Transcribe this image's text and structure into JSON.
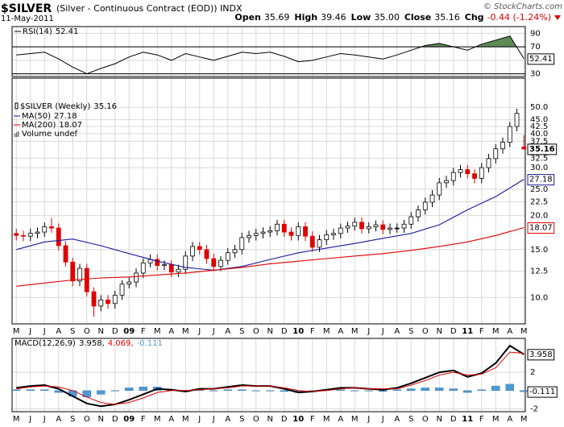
{
  "header": {
    "title": "$SILVER",
    "subtitle": "(Silver - Continuous Contract (EOD)) INDX",
    "date": "11-May-2011",
    "copyright": "© StockCharts.com",
    "quote": [
      {
        "label": "Open",
        "value": "35.69"
      },
      {
        "label": "High",
        "value": "39.46"
      },
      {
        "label": "Low",
        "value": "35.00"
      },
      {
        "label": "Close",
        "value": "35.16"
      }
    ],
    "change": {
      "label": "Chg",
      "value": "-0.44 (-1.24%)",
      "color": "#e00000"
    }
  },
  "chart_data": [
    {
      "type": "line",
      "xlim": [
        -0.3,
        36.1
      ],
      "ylim": [
        26,
        100
      ],
      "yticks": [
        90,
        70,
        50,
        30
      ],
      "overbought": 70,
      "oversold": 30,
      "fill_color": "#5e8a55",
      "series": [
        {
          "name": "RSI(14)",
          "color": "#000000",
          "x": [
            0,
            1,
            2,
            3,
            4,
            5,
            6,
            7,
            8,
            9,
            10,
            11,
            12,
            13,
            14,
            15,
            16,
            17,
            18,
            19,
            20,
            21,
            22,
            23,
            24,
            25,
            26,
            27,
            28,
            29,
            30,
            31,
            32,
            33,
            34,
            35,
            36
          ],
          "values": [
            58,
            60,
            62,
            52,
            40,
            30,
            38,
            45,
            55,
            62,
            58,
            50,
            60,
            55,
            50,
            56,
            62,
            60,
            62,
            56,
            48,
            50,
            55,
            60,
            58,
            55,
            52,
            58,
            65,
            72,
            75,
            70,
            65,
            74,
            80,
            86,
            52.41
          ]
        }
      ]
    },
    {
      "type": "candlestick",
      "name": "$SILVER (Weekly)",
      "up_color": "#000000",
      "down_color": "#e00000",
      "volume_label": "Volume undef",
      "log_scale": true,
      "xlim": [
        -0.3,
        36.1
      ],
      "ylim": [
        8,
        64
      ],
      "yticks": [
        {
          "value": 10,
          "label": "10.0"
        },
        12.5,
        {
          "value": 15,
          "label": "15.0"
        },
        {
          "value": 20,
          "label": "20.0"
        },
        22.5,
        {
          "value": 25,
          "label": "25.0"
        },
        {
          "value": 30,
          "label": "30.0"
        },
        32.5,
        37.5,
        {
          "value": 40,
          "label": "40.0"
        },
        42.5,
        {
          "value": 45,
          "label": "45.0"
        },
        {
          "value": 50,
          "label": "50.0"
        }
      ],
      "xticks": [
        {
          "value": 0,
          "label": "M"
        },
        {
          "value": 1,
          "label": "J"
        },
        {
          "value": 2,
          "label": "J"
        },
        {
          "value": 3,
          "label": "A"
        },
        {
          "value": 4,
          "label": "S"
        },
        {
          "value": 5,
          "label": "O"
        },
        {
          "value": 6,
          "label": "N"
        },
        {
          "value": 7,
          "label": "D"
        },
        {
          "value": 8,
          "label": "09"
        },
        {
          "value": 9,
          "label": "F"
        },
        {
          "value": 10,
          "label": "M"
        },
        {
          "value": 11,
          "label": "A"
        },
        {
          "value": 12,
          "label": "M"
        },
        {
          "value": 13,
          "label": "J"
        },
        {
          "value": 14,
          "label": "J"
        },
        {
          "value": 15,
          "label": "A"
        },
        {
          "value": 16,
          "label": "S"
        },
        {
          "value": 17,
          "label": "O"
        },
        {
          "value": 18,
          "label": "N"
        },
        {
          "value": 19,
          "label": "D"
        },
        {
          "value": 20,
          "label": "10"
        },
        {
          "value": 21,
          "label": "F"
        },
        {
          "value": 22,
          "label": "M"
        },
        {
          "value": 23,
          "label": "A"
        },
        {
          "value": 24,
          "label": "M"
        },
        {
          "value": 25,
          "label": "J"
        },
        {
          "value": 26,
          "label": "J"
        },
        {
          "value": 27,
          "label": "A"
        },
        {
          "value": 28,
          "label": "S"
        },
        {
          "value": 29,
          "label": "O"
        },
        {
          "value": 30,
          "label": "N"
        },
        {
          "value": 31,
          "label": "D"
        },
        {
          "value": 32,
          "label": "11"
        },
        {
          "value": 33,
          "label": "F"
        },
        {
          "value": 34,
          "label": "M"
        },
        {
          "value": 35,
          "label": "A"
        },
        {
          "value": 36,
          "label": "M"
        }
      ],
      "x": [
        0,
        0.5,
        1,
        1.5,
        2,
        2.5,
        3,
        3.5,
        4,
        4.5,
        5,
        5.5,
        6,
        6.5,
        7,
        7.5,
        8,
        8.5,
        9,
        9.5,
        10,
        10.5,
        11,
        11.5,
        12,
        12.5,
        13,
        13.5,
        14,
        14.5,
        15,
        15.5,
        16,
        16.5,
        17,
        17.5,
        18,
        18.5,
        19,
        19.5,
        20,
        20.5,
        21,
        21.5,
        22,
        22.5,
        23,
        23.5,
        24,
        24.5,
        25,
        25.5,
        26,
        26.5,
        27,
        27.5,
        28,
        28.5,
        29,
        29.5,
        30,
        30.5,
        31,
        31.5,
        32,
        32.5,
        33,
        33.5,
        34,
        34.5,
        35,
        35.5,
        36
      ],
      "open": [
        17.2,
        16.9,
        16.8,
        17.2,
        17.4,
        18.2,
        18.0,
        15.5,
        13.5,
        11.5,
        12.8,
        10.5,
        9.3,
        9.8,
        9.5,
        10.2,
        11.2,
        11.4,
        12.3,
        13.4,
        13.8,
        13.1,
        13.2,
        12.4,
        12.7,
        14.2,
        15.4,
        15.0,
        13.9,
        13.0,
        13.7,
        14.6,
        15.0,
        16.6,
        16.9,
        17.2,
        17.4,
        17.6,
        18.6,
        17.4,
        16.9,
        18.2,
        16.8,
        15.3,
        16.3,
        17.0,
        17.2,
        18.0,
        18.3,
        18.9,
        17.9,
        18.2,
        18.5,
        17.8,
        18.0,
        18.0,
        18.6,
        19.8,
        21.0,
        22.4,
        23.8,
        26.4,
        26.9,
        28.8,
        29.5,
        28.5,
        27.4,
        30.0,
        32.4,
        35.2,
        37.2,
        42.5,
        35.69
      ],
      "high": [
        17.9,
        17.6,
        17.9,
        18.1,
        18.9,
        19.6,
        18.7,
        16.1,
        14.0,
        13.3,
        13.3,
        10.9,
        10.2,
        10.2,
        10.6,
        11.6,
        11.9,
        12.8,
        13.9,
        14.4,
        14.4,
        13.7,
        13.7,
        13.2,
        14.8,
        16.0,
        16.0,
        15.6,
        14.5,
        14.2,
        15.2,
        15.6,
        17.3,
        17.6,
        17.9,
        18.1,
        18.3,
        19.3,
        19.3,
        18.1,
        18.9,
        18.9,
        17.5,
        17.0,
        17.7,
        17.9,
        18.7,
        19.0,
        19.7,
        19.7,
        18.9,
        19.2,
        19.2,
        18.7,
        18.7,
        19.3,
        20.6,
        21.8,
        23.3,
        24.8,
        27.5,
        28.0,
        30.0,
        30.7,
        30.7,
        29.6,
        31.2,
        33.7,
        36.6,
        38.7,
        44.2,
        49.4,
        39.46
      ],
      "low": [
        16.2,
        16.1,
        16.1,
        16.5,
        16.7,
        17.3,
        14.9,
        13.0,
        11.0,
        11.0,
        10.1,
        8.5,
        8.9,
        9.1,
        9.1,
        9.8,
        10.8,
        10.9,
        11.8,
        12.9,
        12.6,
        12.6,
        11.9,
        11.9,
        12.2,
        13.6,
        14.4,
        13.3,
        12.5,
        12.5,
        13.2,
        14.0,
        14.4,
        15.9,
        16.2,
        16.5,
        16.7,
        16.9,
        16.7,
        16.2,
        16.2,
        16.1,
        14.7,
        14.7,
        15.6,
        16.3,
        16.5,
        17.3,
        17.6,
        17.2,
        17.2,
        17.5,
        17.1,
        17.1,
        17.3,
        17.3,
        17.9,
        19.0,
        20.2,
        21.5,
        22.8,
        25.3,
        25.8,
        27.6,
        27.4,
        26.3,
        26.3,
        28.8,
        31.1,
        33.8,
        35.7,
        40.8,
        35.0
      ],
      "close": [
        16.9,
        16.8,
        17.2,
        17.4,
        18.2,
        18.0,
        15.5,
        13.5,
        11.5,
        12.8,
        10.5,
        9.3,
        9.8,
        9.5,
        10.2,
        11.2,
        11.4,
        12.3,
        13.4,
        13.8,
        13.1,
        13.2,
        12.4,
        12.7,
        14.2,
        15.4,
        15.0,
        13.9,
        13.0,
        13.7,
        14.6,
        15.0,
        16.6,
        16.9,
        17.2,
        17.4,
        17.6,
        18.6,
        17.4,
        16.9,
        18.2,
        16.8,
        15.3,
        16.3,
        17.0,
        17.2,
        18.0,
        18.3,
        18.9,
        17.9,
        18.2,
        18.5,
        17.8,
        18.0,
        18.0,
        18.6,
        19.8,
        21.0,
        22.4,
        23.8,
        26.4,
        26.9,
        28.8,
        29.5,
        28.5,
        27.4,
        30.0,
        32.4,
        35.2,
        37.2,
        42.5,
        47.5,
        35.16
      ],
      "series": [
        {
          "name": "MA(50)",
          "color": "#1a1a9a",
          "x": [
            0,
            2,
            4,
            6,
            8,
            10,
            12,
            14,
            16,
            18,
            20,
            22,
            24,
            26,
            28,
            30,
            32,
            34,
            36
          ],
          "values": [
            15.0,
            16.0,
            16.4,
            15.5,
            14.5,
            13.6,
            12.9,
            12.6,
            13.0,
            13.8,
            14.6,
            15.2,
            15.8,
            16.5,
            17.2,
            18.5,
            21.0,
            23.5,
            27.18
          ]
        },
        {
          "name": "MA(200)",
          "color": "#e00000",
          "x": [
            0,
            2,
            4,
            6,
            8,
            10,
            12,
            14,
            16,
            18,
            20,
            22,
            24,
            26,
            28,
            30,
            32,
            34,
            36
          ],
          "values": [
            11.0,
            11.3,
            11.6,
            11.8,
            11.9,
            12.1,
            12.3,
            12.6,
            12.9,
            13.3,
            13.6,
            13.9,
            14.2,
            14.5,
            14.9,
            15.4,
            16.0,
            16.9,
            18.07
          ]
        }
      ]
    },
    {
      "type": "combo",
      "xlim": [
        -0.3,
        36.1
      ],
      "ylim": [
        -2.3,
        5.7
      ],
      "yticks": [
        2,
        -2
      ],
      "xticks": [
        {
          "value": 0,
          "label": "M"
        },
        {
          "value": 1,
          "label": "J"
        },
        {
          "value": 2,
          "label": "J"
        },
        {
          "value": 3,
          "label": "A"
        },
        {
          "value": 4,
          "label": "S"
        },
        {
          "value": 5,
          "label": "O"
        },
        {
          "value": 6,
          "label": "N"
        },
        {
          "value": 7,
          "label": "D"
        },
        {
          "value": 8,
          "label": "09"
        },
        {
          "value": 9,
          "label": "F"
        },
        {
          "value": 10,
          "label": "M"
        },
        {
          "value": 11,
          "label": "A"
        },
        {
          "value": 12,
          "label": "M"
        },
        {
          "value": 13,
          "label": "J"
        },
        {
          "value": 14,
          "label": "J"
        },
        {
          "value": 15,
          "label": "A"
        },
        {
          "value": 16,
          "label": "S"
        },
        {
          "value": 17,
          "label": "O"
        },
        {
          "value": 18,
          "label": "N"
        },
        {
          "value": 19,
          "label": "D"
        },
        {
          "value": 20,
          "label": "10"
        },
        {
          "value": 21,
          "label": "F"
        },
        {
          "value": 22,
          "label": "M"
        },
        {
          "value": 23,
          "label": "A"
        },
        {
          "value": 24,
          "label": "M"
        },
        {
          "value": 25,
          "label": "J"
        },
        {
          "value": 26,
          "label": "J"
        },
        {
          "value": 27,
          "label": "A"
        },
        {
          "value": 28,
          "label": "S"
        },
        {
          "value": 29,
          "label": "O"
        },
        {
          "value": 30,
          "label": "N"
        },
        {
          "value": 31,
          "label": "D"
        },
        {
          "value": 32,
          "label": "11"
        },
        {
          "value": 33,
          "label": "F"
        },
        {
          "value": 34,
          "label": "M"
        },
        {
          "value": 35,
          "label": "A"
        },
        {
          "value": 36,
          "label": "M"
        }
      ],
      "x": [
        0,
        1,
        2,
        3,
        4,
        5,
        6,
        7,
        8,
        9,
        10,
        11,
        12,
        13,
        14,
        15,
        16,
        17,
        18,
        19,
        20,
        21,
        22,
        23,
        24,
        25,
        26,
        27,
        28,
        29,
        30,
        31,
        32,
        33,
        34,
        35,
        36
      ],
      "legend_labels": [
        "3.958,",
        "4.069,",
        "-0.111"
      ],
      "series": [
        {
          "name": "MACD(12,26,9)",
          "color": "#000000",
          "values": [
            0.3,
            0.5,
            0.6,
            0.2,
            -0.6,
            -1.4,
            -1.7,
            -1.5,
            -1.0,
            -0.4,
            0.2,
            0.1,
            -0.1,
            0.2,
            0.2,
            0.4,
            0.6,
            0.5,
            0.5,
            0.2,
            -0.2,
            -0.1,
            0.1,
            0.3,
            0.3,
            0.2,
            0.1,
            0.3,
            0.8,
            1.4,
            2.0,
            2.2,
            1.5,
            1.9,
            3.0,
            4.9,
            3.958
          ]
        },
        {
          "color": "#e00000",
          "values": [
            0.2,
            0.4,
            0.5,
            0.4,
            0.0,
            -0.7,
            -1.3,
            -1.5,
            -1.3,
            -0.8,
            -0.2,
            0.0,
            0.0,
            0.1,
            0.2,
            0.3,
            0.5,
            0.5,
            0.5,
            0.3,
            0.0,
            -0.1,
            0.0,
            0.2,
            0.3,
            0.2,
            0.2,
            0.2,
            0.6,
            1.1,
            1.7,
            2.0,
            1.7,
            1.8,
            2.5,
            4.2,
            4.069
          ]
        },
        {
          "kind": "bar",
          "color": "#4f9ad6",
          "values": [
            0.1,
            0.1,
            0.1,
            -0.2,
            -0.6,
            -0.7,
            -0.4,
            0.0,
            0.3,
            0.4,
            0.4,
            0.1,
            -0.1,
            0.1,
            0.0,
            0.1,
            0.1,
            0.0,
            0.0,
            -0.1,
            -0.2,
            0.0,
            0.1,
            0.1,
            0.0,
            0.0,
            -0.1,
            0.1,
            0.2,
            0.3,
            0.3,
            0.2,
            -0.2,
            0.1,
            0.5,
            0.7,
            -0.111
          ]
        }
      ]
    }
  ]
}
